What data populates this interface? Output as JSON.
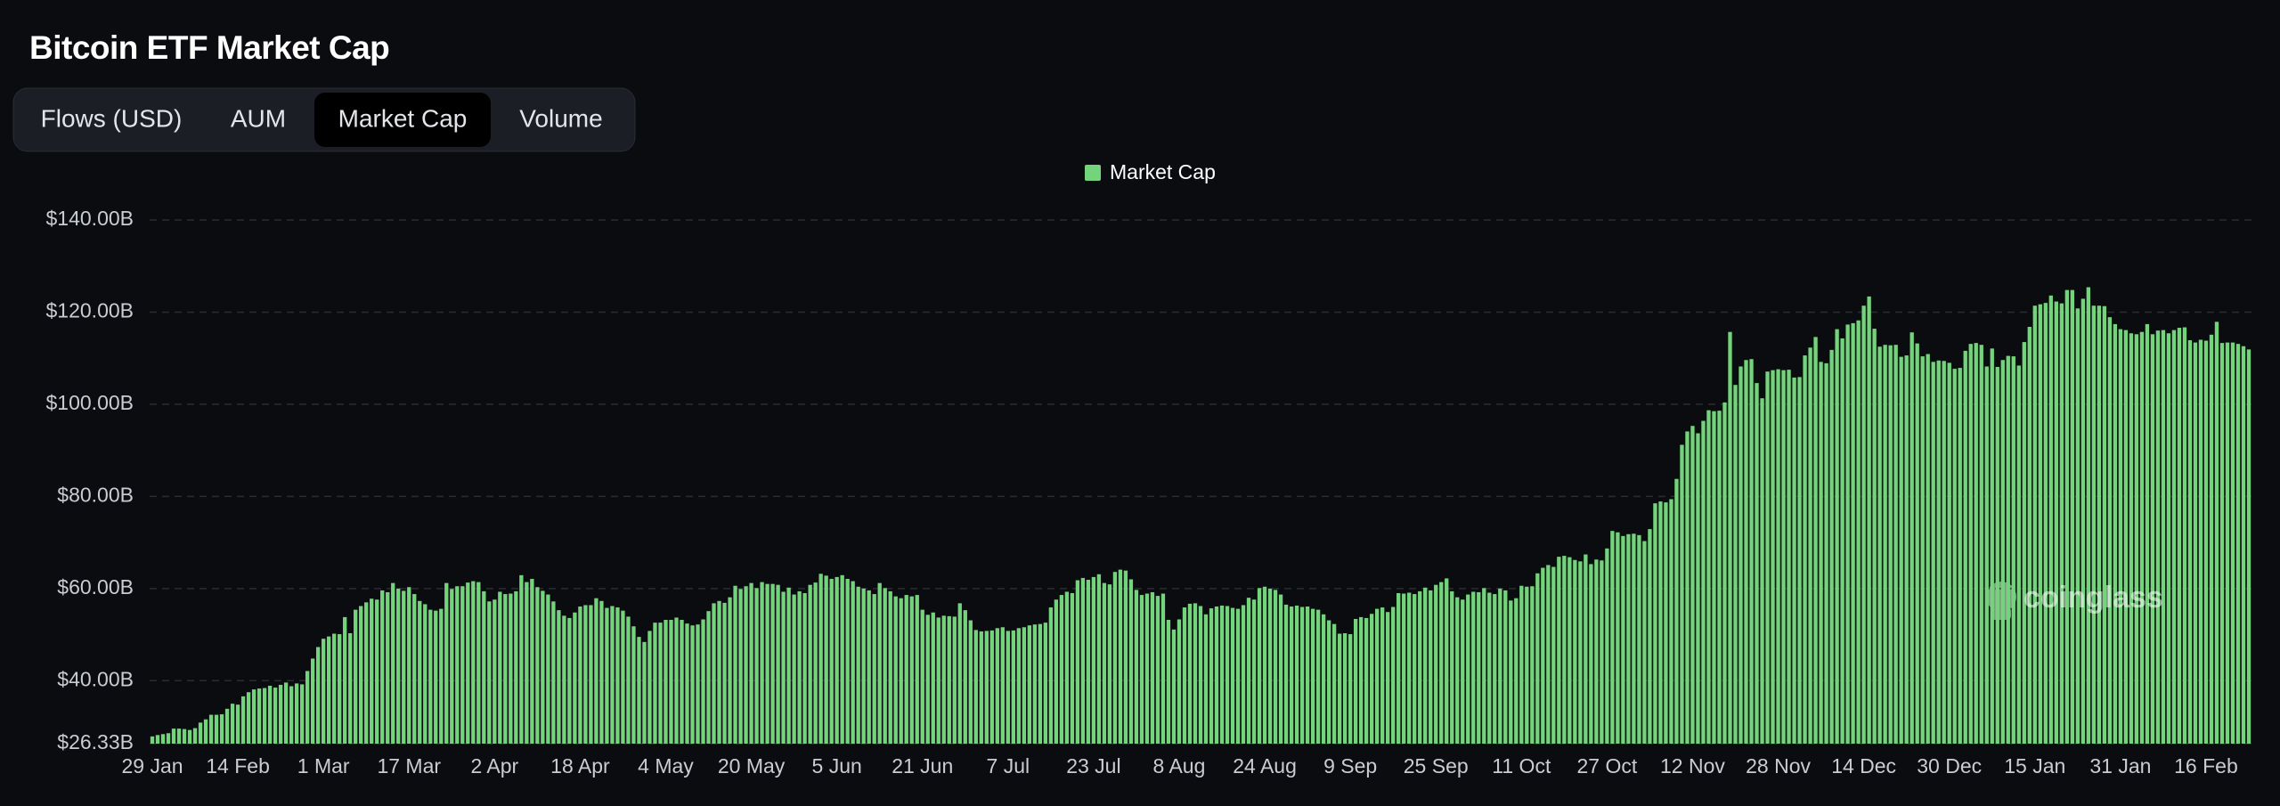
{
  "tabs": [
    "Flows (USD)",
    "AUM",
    "Market Cap",
    "Volume"
  ],
  "active_tab": 2,
  "watermark": "coinglass",
  "chart_data": {
    "type": "bar",
    "title": "Bitcoin ETF Market Cap",
    "categories": [
      "29 Jan",
      null,
      null,
      null,
      null,
      null,
      null,
      null,
      null,
      null,
      null,
      null,
      null,
      null,
      null,
      null,
      "14 Feb",
      null,
      null,
      null,
      null,
      null,
      null,
      null,
      null,
      null,
      null,
      null,
      null,
      null,
      null,
      null,
      "1 Mar",
      null,
      null,
      null,
      null,
      null,
      null,
      null,
      null,
      null,
      null,
      null,
      null,
      null,
      null,
      null,
      "17 Mar",
      null,
      null,
      null,
      null,
      null,
      null,
      null,
      null,
      null,
      null,
      null,
      null,
      null,
      null,
      null,
      "2 Apr",
      null,
      null,
      null,
      null,
      null,
      null,
      null,
      null,
      null,
      null,
      null,
      null,
      null,
      null,
      null,
      "18 Apr",
      null,
      null,
      null,
      null,
      null,
      null,
      null,
      null,
      null,
      null,
      null,
      null,
      null,
      null,
      null,
      "4 May",
      null,
      null,
      null,
      null,
      null,
      null,
      null,
      null,
      null,
      null,
      null,
      null,
      null,
      null,
      null,
      "20 May",
      null,
      null,
      null,
      null,
      null,
      null,
      null,
      null,
      null,
      null,
      null,
      null,
      null,
      null,
      null,
      "5 Jun",
      null,
      null,
      null,
      null,
      null,
      null,
      null,
      null,
      null,
      null,
      null,
      null,
      null,
      null,
      null,
      "21 Jun",
      null,
      null,
      null,
      null,
      null,
      null,
      null,
      null,
      null,
      null,
      null,
      null,
      null,
      null,
      null,
      "7 Jul",
      null,
      null,
      null,
      null,
      null,
      null,
      null,
      null,
      null,
      null,
      null,
      null,
      null,
      null,
      null,
      "23 Jul",
      null,
      null,
      null,
      null,
      null,
      null,
      null,
      null,
      null,
      null,
      null,
      null,
      null,
      null,
      null,
      "8 Aug",
      null,
      null,
      null,
      null,
      null,
      null,
      null,
      null,
      null,
      null,
      null,
      null,
      null,
      null,
      null,
      "24 Aug",
      null,
      null,
      null,
      null,
      null,
      null,
      null,
      null,
      null,
      null,
      null,
      null,
      null,
      null,
      null,
      "9 Sep",
      null,
      null,
      null,
      null,
      null,
      null,
      null,
      null,
      null,
      null,
      null,
      null,
      null,
      null,
      null,
      "25 Sep",
      null,
      null,
      null,
      null,
      null,
      null,
      null,
      null,
      null,
      null,
      null,
      null,
      null,
      null,
      null,
      "11 Oct",
      null,
      null,
      null,
      null,
      null,
      null,
      null,
      null,
      null,
      null,
      null,
      null,
      null,
      null,
      null,
      "27 Oct",
      null,
      null,
      null,
      null,
      null,
      null,
      null,
      null,
      null,
      null,
      null,
      null,
      null,
      null,
      null,
      "12 Nov",
      null,
      null,
      null,
      null,
      null,
      null,
      null,
      null,
      null,
      null,
      null,
      null,
      null,
      null,
      null,
      "28 Nov",
      null,
      null,
      null,
      null,
      null,
      null,
      null,
      null,
      null,
      null,
      null,
      null,
      null,
      null,
      null,
      "14 Dec",
      null,
      null,
      null,
      null,
      null,
      null,
      null,
      null,
      null,
      null,
      null,
      null,
      null,
      null,
      null,
      "30 Dec",
      null,
      null,
      null,
      null,
      null,
      null,
      null,
      null,
      null,
      null,
      null,
      null,
      null,
      null,
      null,
      "15 Jan",
      null,
      null,
      null,
      null,
      null,
      null,
      null,
      null,
      null,
      null,
      null,
      null,
      null,
      null,
      null,
      "31 Jan",
      null,
      null,
      null,
      null,
      null,
      null,
      null,
      null,
      null,
      null,
      null,
      null,
      null,
      null,
      null,
      "16 Feb",
      null,
      null,
      null,
      null,
      null,
      null,
      null,
      null
    ],
    "series": [
      {
        "name": "Market Cap",
        "color": "#74d47c",
        "values": [
          27.9,
          28.2,
          28.4,
          28.6,
          29.6,
          29.6,
          29.5,
          29.3,
          29.7,
          30.9,
          31.6,
          32.6,
          32.6,
          32.7,
          33.9,
          35.0,
          34.8,
          36.6,
          37.5,
          38.1,
          38.3,
          38.4,
          38.9,
          38.5,
          39.1,
          39.6,
          38.8,
          39.4,
          39.2,
          42.1,
          44.8,
          47.3,
          49.1,
          49.6,
          50.2,
          50.1,
          53.8,
          50.3,
          55.4,
          56.2,
          57.0,
          57.8,
          57.6,
          59.6,
          59.2,
          61.2,
          60.0,
          59.5,
          60.3,
          58.8,
          57.3,
          56.6,
          55.4,
          55.2,
          55.6,
          61.2,
          59.9,
          60.5,
          60.5,
          61.3,
          61.6,
          61.4,
          59.4,
          57.2,
          57.6,
          59.3,
          58.8,
          58.9,
          59.4,
          62.9,
          61.4,
          62.1,
          60.3,
          59.5,
          58.7,
          57.2,
          55.3,
          54.1,
          53.6,
          54.8,
          56.1,
          56.4,
          56.4,
          57.9,
          57.3,
          55.8,
          56.2,
          55.9,
          55.2,
          53.9,
          51.8,
          49.5,
          48.4,
          50.8,
          52.6,
          52.6,
          53.2,
          53.2,
          53.7,
          53.2,
          52.4,
          52.0,
          52.2,
          53.3,
          55.1,
          56.8,
          57.3,
          56.9,
          58.1,
          60.6,
          59.9,
          60.5,
          61.2,
          60.1,
          61.4,
          61.0,
          61.0,
          60.8,
          59.3,
          60.2,
          58.7,
          59.4,
          59.0,
          60.8,
          61.3,
          63.2,
          62.8,
          62.1,
          62.5,
          62.9,
          62.1,
          61.6,
          60.4,
          60.0,
          59.6,
          58.8,
          61.2,
          60.1,
          59.4,
          58.3,
          57.9,
          58.6,
          58.3,
          58.6,
          55.4,
          54.3,
          54.8,
          53.7,
          54.1,
          54.0,
          53.9,
          56.8,
          55.3,
          53.1,
          51.0,
          50.7,
          50.8,
          50.9,
          51.4,
          51.6,
          50.8,
          50.9,
          51.4,
          51.6,
          52.0,
          52.2,
          52.3,
          52.6,
          55.9,
          57.6,
          58.6,
          59.3,
          59.0,
          61.8,
          62.3,
          61.9,
          62.5,
          63.1,
          61.2,
          60.9,
          63.6,
          64.1,
          63.9,
          62.0,
          59.7,
          58.6,
          58.9,
          59.2,
          58.4,
          58.9,
          53.2,
          51.1,
          53.3,
          55.9,
          56.7,
          56.8,
          56.2,
          54.4,
          55.7,
          56.1,
          56.3,
          56.2,
          55.8,
          55.6,
          56.4,
          58.0,
          57.6,
          60.1,
          60.4,
          60.0,
          59.7,
          58.7,
          56.5,
          56.1,
          56.3,
          56.0,
          56.1,
          55.6,
          55.4,
          54.4,
          53.1,
          52.3,
          50.2,
          50.3,
          50.1,
          53.4,
          53.8,
          53.6,
          54.5,
          55.6,
          55.9,
          54.9,
          56.0,
          59.0,
          58.9,
          59.1,
          58.8,
          59.4,
          60.2,
          59.6,
          60.8,
          61.4,
          62.2,
          59.4,
          58.1,
          57.6,
          58.7,
          59.3,
          59.2,
          60.1,
          59.1,
          58.8,
          60.0,
          59.6,
          57.4,
          57.9,
          60.6,
          60.4,
          60.5,
          63.3,
          64.5,
          65.1,
          64.7,
          66.9,
          67.1,
          66.8,
          66.2,
          65.9,
          67.4,
          65.3,
          66.3,
          66.1,
          68.7,
          72.5,
          72.2,
          71.4,
          71.8,
          71.9,
          71.6,
          70.3,
          72.9,
          78.5,
          78.9,
          78.7,
          79.4,
          83.8,
          91.2,
          94.1,
          95.3,
          93.7,
          96.4,
          98.7,
          98.5,
          98.6,
          100.4,
          115.7,
          104.2,
          108.2,
          109.6,
          109.8,
          104.6,
          101.3,
          107.1,
          107.4,
          107.6,
          107.4,
          107.5,
          105.8,
          105.9,
          110.6,
          112.3,
          114.6,
          109.2,
          108.9,
          111.8,
          116.3,
          114.3,
          117.3,
          117.6,
          118.2,
          121.4,
          123.4,
          116.4,
          112.5,
          112.9,
          112.8,
          112.9,
          110.3,
          110.6,
          115.6,
          113.2,
          110.4,
          110.9,
          109.2,
          109.5,
          109.4,
          109.0,
          107.7,
          107.9,
          111.6,
          113.1,
          113.3,
          112.9,
          108.2,
          112.1,
          108.1,
          109.6,
          110.5,
          110.4,
          108.4,
          113.5,
          116.8,
          121.4,
          121.7,
          122.0,
          123.6,
          122.3,
          121.9,
          124.8,
          124.8,
          120.8,
          122.9,
          125.4,
          121.4,
          121.4,
          121.3,
          118.9,
          117.4,
          116.3,
          116.1,
          115.4,
          115.2,
          115.7,
          117.4,
          115.2,
          116.0,
          116.1,
          115.4,
          116.1,
          116.6,
          116.7,
          113.9,
          113.4,
          114.0,
          113.8,
          115.1,
          117.9,
          113.3,
          113.4,
          113.4,
          113.1,
          112.6,
          111.9
        ]
      }
    ],
    "ylim": [
      26.33,
      140
    ],
    "yticks": [
      {
        "value": 26.33,
        "label": "$26.33B"
      },
      {
        "value": 40,
        "label": "$40.00B"
      },
      {
        "value": 60,
        "label": "$60.00B"
      },
      {
        "value": 80,
        "label": "$80.00B"
      },
      {
        "value": 100,
        "label": "$100.00B"
      },
      {
        "value": 120,
        "label": "$120.00B"
      },
      {
        "value": 140,
        "label": "$140.00B"
      }
    ],
    "grid": true,
    "legend": "top"
  }
}
